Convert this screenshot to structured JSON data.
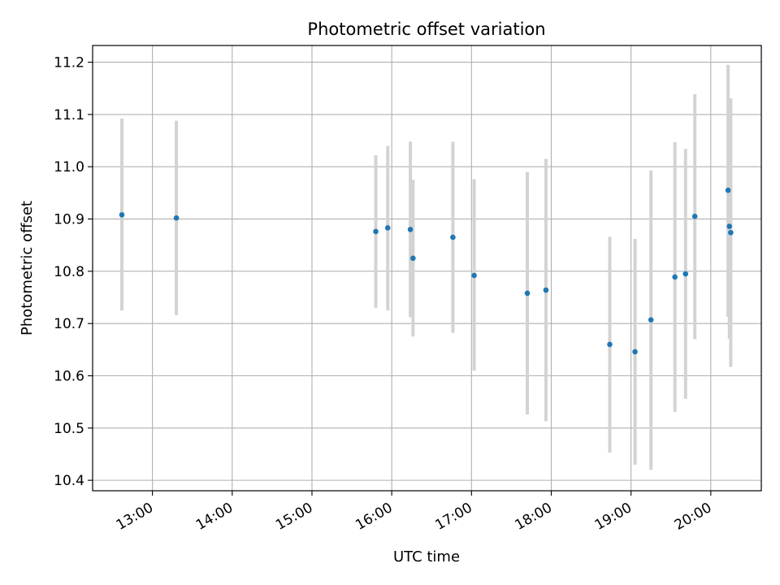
{
  "chart_data": {
    "type": "scatter",
    "title": "Photometric offset variation",
    "xlabel": "UTC time",
    "ylabel": "Photometric offset",
    "x_ticks": [
      "13:00",
      "14:00",
      "15:00",
      "16:00",
      "17:00",
      "18:00",
      "19:00",
      "20:00"
    ],
    "y_ticks": [
      "10.4",
      "10.5",
      "10.6",
      "10.7",
      "10.8",
      "10.9",
      "11.0",
      "11.1",
      "11.2"
    ],
    "xlim": [
      "12:15",
      "20:38"
    ],
    "ylim": [
      10.38,
      11.232
    ],
    "grid": true,
    "legend": "none",
    "marker_color": "#1f77b4",
    "errorbar_color": "#d3d3d3",
    "points": [
      {
        "time": "12:37",
        "y": 10.908,
        "low": 10.725,
        "high": 11.092
      },
      {
        "time": "13:18",
        "y": 10.902,
        "low": 10.716,
        "high": 11.088
      },
      {
        "time": "15:48",
        "y": 10.876,
        "low": 10.73,
        "high": 11.022
      },
      {
        "time": "15:57",
        "y": 10.883,
        "low": 10.725,
        "high": 11.04
      },
      {
        "time": "16:14",
        "y": 10.88,
        "low": 10.712,
        "high": 11.048
      },
      {
        "time": "16:16",
        "y": 10.825,
        "low": 10.675,
        "high": 10.975
      },
      {
        "time": "16:46",
        "y": 10.865,
        "low": 10.682,
        "high": 11.048
      },
      {
        "time": "17:02",
        "y": 10.792,
        "low": 10.61,
        "high": 10.976
      },
      {
        "time": "17:42",
        "y": 10.758,
        "low": 10.526,
        "high": 10.99
      },
      {
        "time": "17:56",
        "y": 10.764,
        "low": 10.513,
        "high": 11.015
      },
      {
        "time": "18:44",
        "y": 10.66,
        "low": 10.453,
        "high": 10.866
      },
      {
        "time": "19:03",
        "y": 10.646,
        "low": 10.43,
        "high": 10.862
      },
      {
        "time": "19:15",
        "y": 10.707,
        "low": 10.42,
        "high": 10.993
      },
      {
        "time": "19:33",
        "y": 10.789,
        "low": 10.531,
        "high": 11.047
      },
      {
        "time": "19:41",
        "y": 10.795,
        "low": 10.556,
        "high": 11.034
      },
      {
        "time": "19:48",
        "y": 10.905,
        "low": 10.67,
        "high": 11.139
      },
      {
        "time": "20:13",
        "y": 10.955,
        "low": 10.713,
        "high": 11.195
      },
      {
        "time": "20:14",
        "y": 10.886,
        "low": 10.671,
        "high": 11.1
      },
      {
        "time": "20:15",
        "y": 10.874,
        "low": 10.617,
        "high": 11.131
      }
    ]
  }
}
